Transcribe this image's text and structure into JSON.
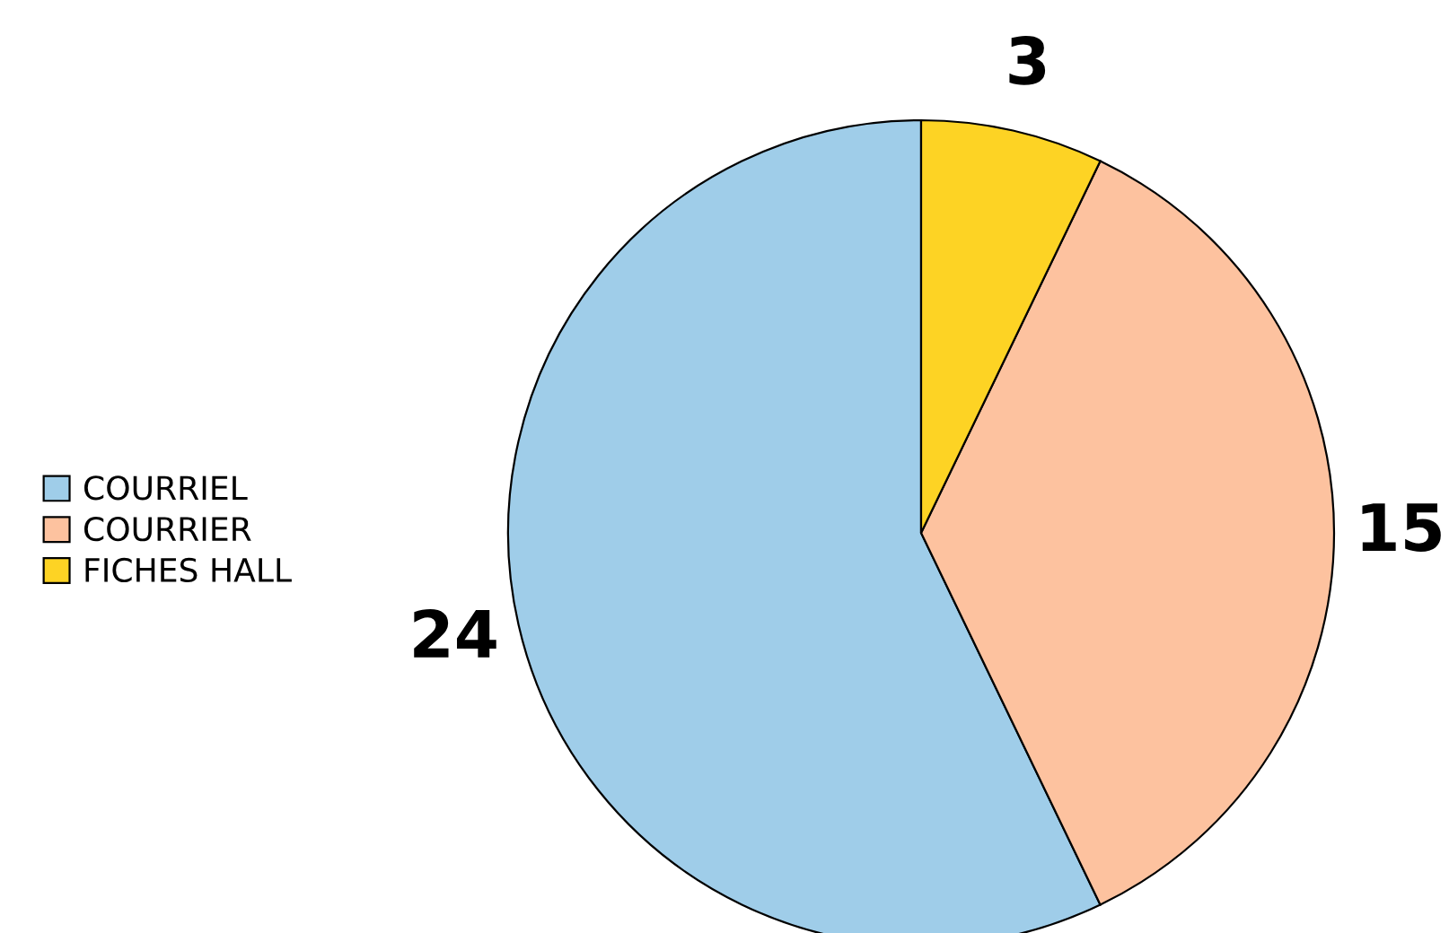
{
  "chart_data": {
    "type": "pie",
    "categories": [
      "COURRIEL",
      "COURRIER",
      "FICHES HALL"
    ],
    "values": [
      24,
      15,
      3
    ],
    "colors": [
      "#9fcde9",
      "#fdc29f",
      "#fdd324"
    ],
    "data_labels": true,
    "legend": "left"
  }
}
